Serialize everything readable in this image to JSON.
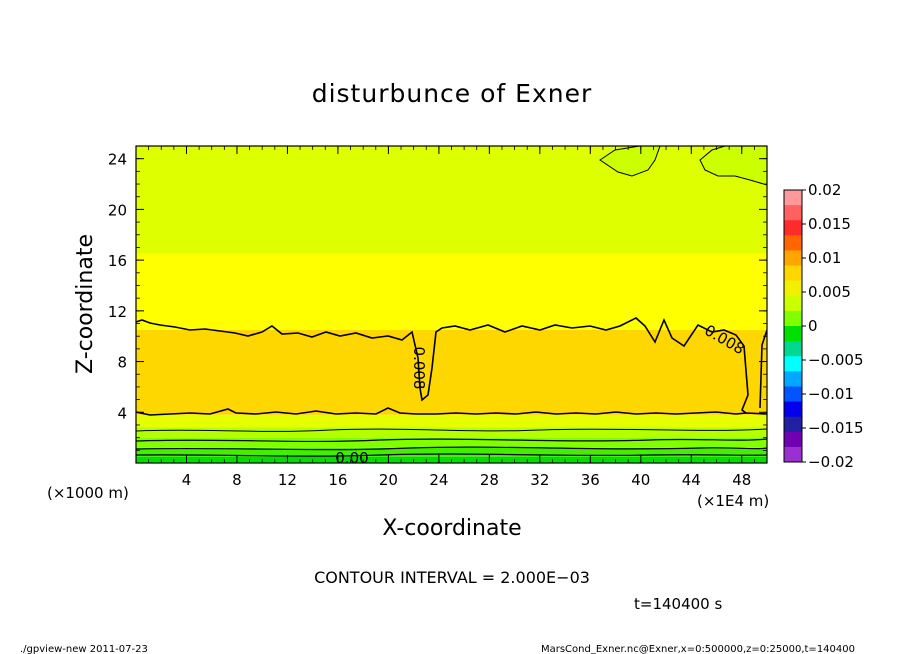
{
  "chart_data": {
    "type": "heatmap",
    "title": "disturbunce of Exner",
    "xlabel": "X-coordinate",
    "ylabel": "Z-coordinate",
    "x_unit_left": "(×1000 m)",
    "x_unit_right": "(×1E4 m)",
    "xlim": [
      0,
      50
    ],
    "ylim": [
      0,
      25
    ],
    "x_ticks": [
      "4",
      "8",
      "12",
      "16",
      "20",
      "24",
      "28",
      "32",
      "36",
      "40",
      "44",
      "48"
    ],
    "y_ticks": [
      "4",
      "8",
      "12",
      "16",
      "20",
      "24"
    ],
    "colorbar": {
      "range": [
        -0.02,
        0.02
      ],
      "labels": [
        "0.02",
        "0.015",
        "0.01",
        "0.005",
        "0",
        "−0.005",
        "−0.01",
        "−0.015",
        "−0.02"
      ],
      "colors_top_to_bottom": [
        "#ff9999",
        "#ff6060",
        "#ff2a2a",
        "#ff6600",
        "#ffa500",
        "#ffd700",
        "#f0f000",
        "#ccff00",
        "#7fff00",
        "#00e000",
        "#00d890",
        "#00ffff",
        "#00a8ff",
        "#0055ff",
        "#0000ee",
        "#2020a0",
        "#7000b0",
        "#9a30d0"
      ]
    },
    "field_bands": [
      {
        "z_from": 0,
        "z_to": 0.5,
        "color": "#00e000"
      },
      {
        "z_from": 0.5,
        "z_to": 1.2,
        "color": "#44ee00"
      },
      {
        "z_from": 1.2,
        "z_to": 2.0,
        "color": "#7fff00"
      },
      {
        "z_from": 2.0,
        "z_to": 2.8,
        "color": "#b4ff00"
      },
      {
        "z_from": 2.8,
        "z_to": 3.8,
        "color": "#e6ff00"
      },
      {
        "z_from": 3.8,
        "z_to": 10.5,
        "color": "#ffd700"
      },
      {
        "z_from": 10.5,
        "z_to": 16.5,
        "color": "#ffff00"
      },
      {
        "z_from": 16.5,
        "z_to": 25,
        "color": "#ddff00"
      }
    ],
    "contour_labels": [
      "0.008",
      "0.008",
      "0.00"
    ],
    "contour_interval": "CONTOUR INTERVAL = 2.000E−03",
    "time_label": "t=140400 s"
  },
  "footer": {
    "left": "./gpview-new  2011-07-23",
    "right": "MarsCond_Exner.nc@Exner,x=0:500000,z=0:25000,t=140400"
  }
}
